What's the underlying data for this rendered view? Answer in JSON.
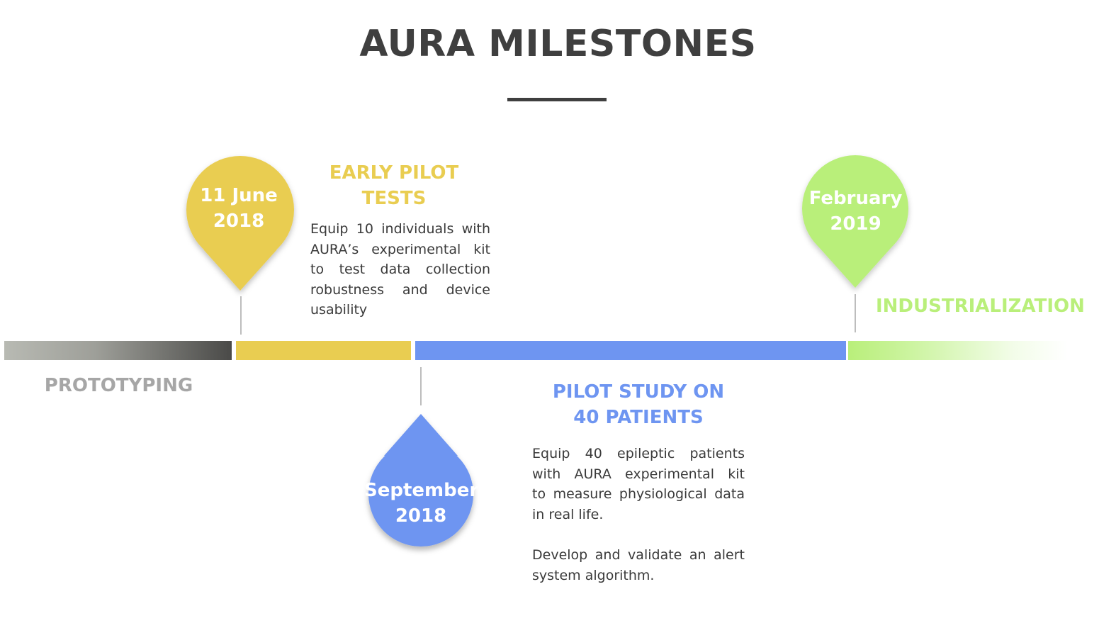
{
  "title": "AURA MILESTONES",
  "colors": {
    "title": "#3f3f3f",
    "prototyping": "#a6a6a6",
    "early_pilot": "#e9cd51",
    "pilot_study": "#6e95f1",
    "industrialization": "#b9ef7a",
    "body_text": "#3a3a3a"
  },
  "milestones": [
    {
      "date_line1": "11 June",
      "date_line2": "2018",
      "color": "#e9cd51"
    },
    {
      "date_line1": "September",
      "date_line2": "2018",
      "color": "#6e95f1"
    },
    {
      "date_line1": "February",
      "date_line2": "2019",
      "color": "#b9ef7a"
    }
  ],
  "phases": {
    "prototyping": {
      "heading": "PROTOTYPING"
    },
    "early_pilot": {
      "heading_line1": "EARLY PILOT",
      "heading_line2": "TESTS",
      "description_lines": [
        "Equip 10 individuals with",
        "AURA’s experimental kit",
        "to test data collection",
        "robustness and device",
        "usability"
      ]
    },
    "pilot_study": {
      "heading_line1": "PILOT STUDY ON",
      "heading_line2": "40 PATIENTS",
      "description_lines": [
        "Equip 40 epileptic patients",
        "with AURA experimental kit",
        "to measure physiological data",
        "in real life."
      ],
      "description2_lines": [
        "Develop and validate an alert",
        "system algorithm."
      ]
    },
    "industrialization": {
      "heading": "INDUSTRIALIZATION"
    }
  }
}
